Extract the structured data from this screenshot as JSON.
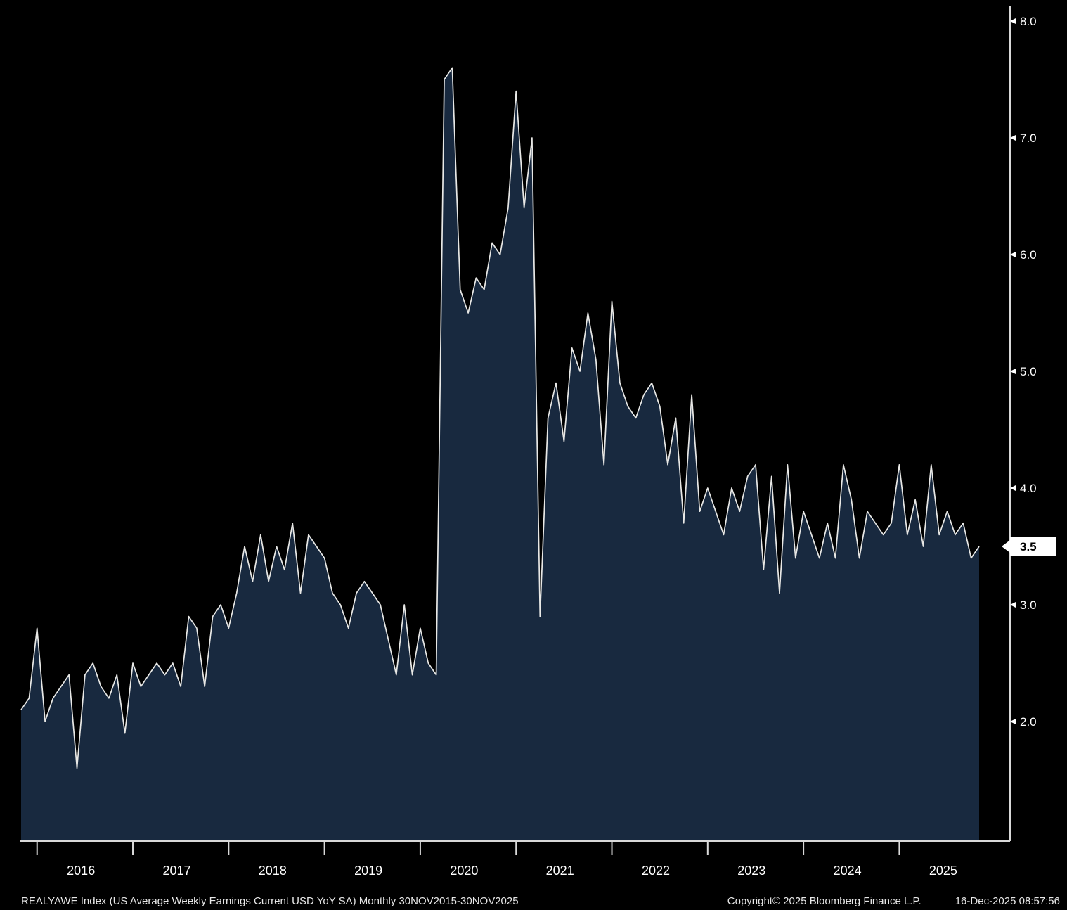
{
  "chart_data": {
    "type": "area",
    "title": "REALYAWE Index (US Average Weekly Earnings Current USD YoY SA)",
    "frequency": "Monthly",
    "period": "30NOV2015-30NOV2025",
    "x_start": "2015-11",
    "x_year_labels": [
      "2016",
      "2017",
      "2018",
      "2019",
      "2020",
      "2021",
      "2022",
      "2023",
      "2024",
      "2025"
    ],
    "values": [
      2.1,
      2.2,
      2.8,
      2.0,
      2.2,
      2.3,
      2.4,
      1.6,
      2.4,
      2.5,
      2.3,
      2.2,
      2.4,
      1.9,
      2.5,
      2.3,
      2.4,
      2.5,
      2.4,
      2.5,
      2.3,
      2.9,
      2.8,
      2.3,
      2.9,
      3.0,
      2.8,
      3.1,
      3.5,
      3.2,
      3.6,
      3.2,
      3.5,
      3.3,
      3.7,
      3.1,
      3.6,
      3.5,
      3.4,
      3.1,
      3.0,
      2.8,
      3.1,
      3.2,
      3.1,
      3.0,
      2.7,
      2.4,
      3.0,
      2.4,
      2.8,
      2.5,
      2.4,
      7.5,
      7.6,
      5.7,
      5.5,
      5.8,
      5.7,
      6.1,
      6.0,
      6.4,
      7.4,
      6.4,
      7.0,
      2.9,
      4.6,
      4.9,
      4.4,
      5.2,
      5.0,
      5.5,
      5.1,
      4.2,
      5.6,
      4.9,
      4.7,
      4.6,
      4.8,
      4.9,
      4.7,
      4.2,
      4.6,
      3.7,
      4.8,
      3.8,
      4.0,
      3.8,
      3.6,
      4.0,
      3.8,
      4.1,
      4.2,
      3.3,
      4.1,
      3.1,
      4.2,
      3.4,
      3.8,
      3.6,
      3.4,
      3.7,
      3.4,
      4.2,
      3.9,
      3.4,
      3.8,
      3.7,
      3.6,
      3.7,
      4.2,
      3.6,
      3.9,
      3.5,
      4.2,
      3.6,
      3.8,
      3.6,
      3.7,
      3.4,
      3.5
    ],
    "ylim": [
      1.0,
      8.1
    ],
    "yticks": [
      2.0,
      3.0,
      4.0,
      5.0,
      6.0,
      7.0,
      8.0
    ],
    "ytick_labels": [
      "2.0",
      "3.0",
      "4.0",
      "5.0",
      "6.0",
      "7.0",
      "8.0"
    ],
    "last_value": 3.5,
    "last_value_label": "3.5",
    "grid": false,
    "legend_position": "none",
    "colors": {
      "background": "#000000",
      "area_fill": "#18293f",
      "line": "#e8e8e6",
      "axis": "#d9d9d9",
      "tick_text": "#ffffff",
      "last_value_bg": "#ffffff",
      "last_value_text": "#000000"
    }
  },
  "footer": {
    "description": "REALYAWE Index (US Average Weekly Earnings Current USD YoY SA) Monthly 30NOV2015-30NOV2025",
    "copyright": "Copyright© 2025 Bloomberg Finance L.P.",
    "timestamp": "16-Dec-2025 08:57:56"
  }
}
